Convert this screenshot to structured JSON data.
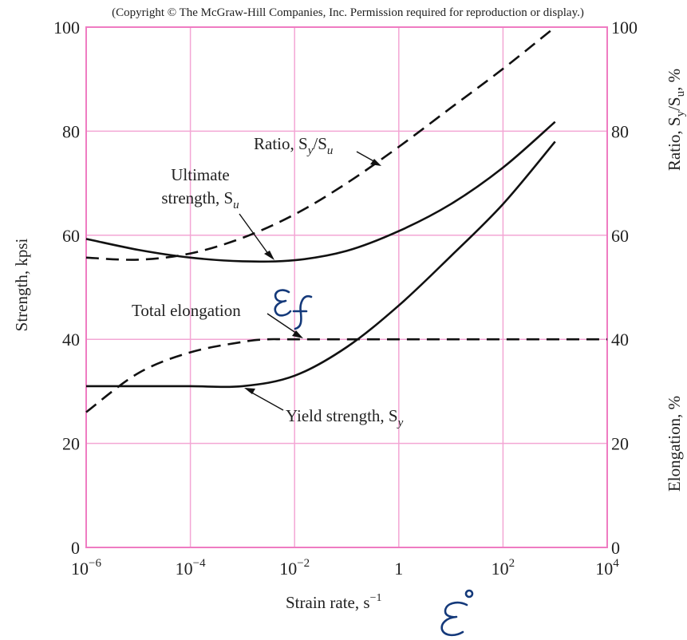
{
  "chart_data": {
    "type": "line",
    "copyright": "(Copyright © The McGraw-Hill Companies, Inc. Permission required for reproduction or display.)",
    "xlabel": "Strain rate, s",
    "xlabel_sup": "−1",
    "ylabel_left": "Strength, kpsi",
    "ylabel_right_top": "Ratio, S",
    "ylabel_right_top_sub1": "y",
    "ylabel_right_top_mid": "/S",
    "ylabel_right_top_sub2": "u",
    "ylabel_right_top_end": ", %",
    "ylabel_right_bottom": "Elongation, %",
    "x_scale": "log",
    "xlim": [
      1e-06,
      10000
    ],
    "ylim": [
      0,
      100
    ],
    "grid": true,
    "x_ticks": [
      {
        "base": "10",
        "exp": "−6",
        "value": 1e-06
      },
      {
        "base": "10",
        "exp": "−4",
        "value": 0.0001
      },
      {
        "base": "10",
        "exp": "−2",
        "value": 0.01
      },
      {
        "base": "1",
        "exp": "",
        "value": 1
      },
      {
        "base": "10",
        "exp": "2",
        "value": 100
      },
      {
        "base": "10",
        "exp": "4",
        "value": 10000
      }
    ],
    "y_ticks_left": [
      "0",
      "20",
      "40",
      "60",
      "80",
      "100"
    ],
    "y_ticks_right": [
      "0",
      "20",
      "40",
      "60",
      "80",
      "100"
    ],
    "series": [
      {
        "name": "Ultimate strength, S_u",
        "style": "solid",
        "x": [
          1e-06,
          1e-05,
          0.0001,
          0.001,
          0.01,
          0.1,
          1,
          10,
          100,
          1000
        ],
        "y": [
          59.3,
          57.2,
          55.7,
          55.0,
          55.2,
          57.0,
          60.8,
          66.0,
          73.0,
          81.8
        ]
      },
      {
        "name": "Yield strength, S_y",
        "style": "solid",
        "x": [
          1e-06,
          1e-05,
          0.0001,
          0.001,
          0.01,
          0.1,
          1,
          10,
          100,
          1000
        ],
        "y": [
          31.0,
          31.0,
          31.0,
          31.0,
          33.0,
          38.5,
          46.5,
          56.0,
          66.0,
          78.0
        ]
      },
      {
        "name": "Ratio, S_y/S_u",
        "style": "dashed",
        "x": [
          1e-06,
          1e-05,
          0.0001,
          0.001,
          0.01,
          0.1,
          1,
          10,
          100,
          1000
        ],
        "y": [
          55.7,
          55.3,
          56.5,
          59.5,
          64.0,
          70.0,
          77.0,
          84.5,
          92.0,
          100.0
        ]
      },
      {
        "name": "Total elongation",
        "style": "dashed",
        "x": [
          1e-06,
          1e-05,
          0.0001,
          0.001,
          0.003,
          0.01,
          1,
          100,
          10000
        ],
        "y": [
          26.0,
          33.5,
          37.5,
          39.5,
          40.0,
          40.0,
          40.0,
          40.0,
          40.0
        ]
      }
    ],
    "annotations": {
      "ultimate_line1": "Ultimate",
      "ultimate_line2": "strength, S",
      "ultimate_sub": "u",
      "ratio_text": "Ratio, S",
      "ratio_sub1": "y",
      "ratio_mid": "/S",
      "ratio_sub2": "u",
      "elongation_text": "Total elongation",
      "yield_text": "Yield strength, S",
      "yield_sub": "y"
    }
  },
  "colors": {
    "grid": "#f3a6d4",
    "frame": "#ef7cc2",
    "curve": "#111111",
    "handwriting": "#14397a"
  }
}
